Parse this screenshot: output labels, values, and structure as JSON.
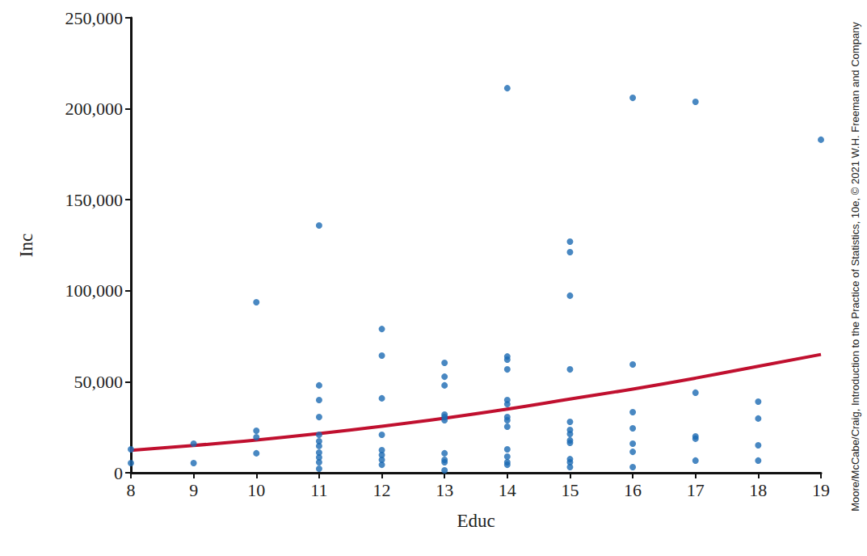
{
  "chart_data": {
    "type": "scatter",
    "x_label": "Educ",
    "y_label": "Inc",
    "xlim": [
      8,
      19
    ],
    "xticks": [
      8,
      9,
      10,
      11,
      12,
      13,
      14,
      15,
      16,
      17,
      18,
      19
    ],
    "ylim": [
      0,
      250000
    ],
    "yticks": [
      0,
      {
        "value": 50000,
        "label": "50,000"
      },
      {
        "value": 100000,
        "label": "100,000"
      },
      {
        "value": 150000,
        "label": "150,000"
      },
      {
        "value": 200000,
        "label": "200,000"
      },
      {
        "value": 250000,
        "label": "250,000"
      }
    ],
    "grid": false,
    "annotations": [
      {
        "text": "Moore/McCabe/Craig, Introduction to the Practice of Statistics, 10e, © 2021 W.H. Freeman and Company"
      }
    ],
    "series": [
      {
        "type": "scatter",
        "color": "#1b6ab3",
        "marker": "circle",
        "x": [
          8,
          8,
          9,
          9,
          10,
          10,
          10,
          10,
          11,
          11,
          11,
          11,
          11,
          11,
          11,
          11,
          11,
          11,
          11,
          12,
          12,
          12,
          12,
          12,
          12,
          12,
          12,
          13,
          13,
          13,
          13,
          13,
          13,
          13,
          13,
          13,
          13,
          14,
          14,
          14,
          14,
          14,
          14,
          14,
          14,
          14,
          14,
          14,
          14,
          14,
          15,
          15,
          15,
          15,
          15,
          15,
          15,
          15,
          15,
          15,
          15,
          15,
          16,
          16,
          16,
          16,
          16,
          16,
          16,
          17,
          17,
          17,
          17,
          17,
          18,
          18,
          18,
          18,
          19
        ],
        "values": [
          12900,
          5300,
          16000,
          5300,
          93700,
          23100,
          19500,
          10700,
          135900,
          48000,
          40000,
          30600,
          20900,
          17300,
          14700,
          11100,
          8400,
          5800,
          2200,
          79000,
          64400,
          40900,
          20900,
          12400,
          9800,
          7100,
          4400,
          60400,
          52800,
          48000,
          32000,
          30600,
          28900,
          10700,
          7100,
          5800,
          1300,
          211300,
          63900,
          62200,
          56800,
          40000,
          37700,
          30600,
          28900,
          25300,
          12900,
          8900,
          5800,
          4400,
          127000,
          121200,
          97300,
          56800,
          28000,
          23500,
          21300,
          17800,
          16400,
          7500,
          5800,
          3100,
          206000,
          59500,
          33300,
          24400,
          16000,
          11500,
          3100,
          203800,
          44000,
          20000,
          18700,
          6700,
          39100,
          29800,
          15100,
          6700,
          183000
        ]
      },
      {
        "type": "line",
        "color": "#c0102f",
        "line_style": "solid",
        "x": [
          8,
          9,
          10,
          11,
          12,
          13,
          14,
          15,
          16,
          17,
          18,
          19
        ],
        "values": [
          12300,
          15000,
          18000,
          21500,
          25500,
          30000,
          35000,
          40500,
          46000,
          52000,
          58500,
          65000
        ]
      }
    ]
  }
}
